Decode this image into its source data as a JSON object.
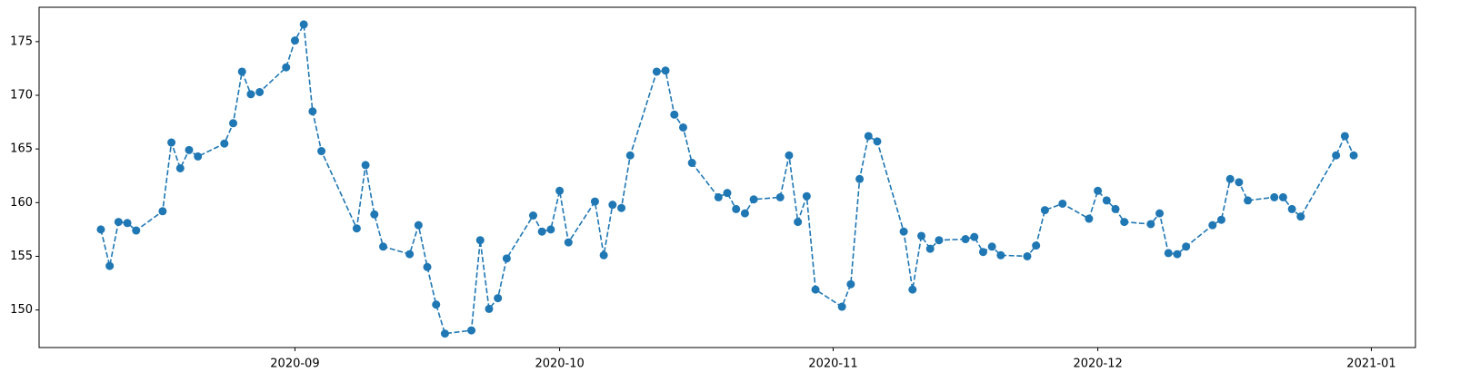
{
  "chart_data": {
    "type": "line",
    "color": "#1f77b4",
    "linestyle": "dashed",
    "marker": "circle",
    "x": [
      "2020-08-10",
      "2020-08-11",
      "2020-08-12",
      "2020-08-13",
      "2020-08-14",
      "2020-08-17",
      "2020-08-18",
      "2020-08-19",
      "2020-08-20",
      "2020-08-21",
      "2020-08-24",
      "2020-08-25",
      "2020-08-26",
      "2020-08-27",
      "2020-08-28",
      "2020-08-31",
      "2020-09-01",
      "2020-09-02",
      "2020-09-03",
      "2020-09-04",
      "2020-09-08",
      "2020-09-09",
      "2020-09-10",
      "2020-09-11",
      "2020-09-14",
      "2020-09-15",
      "2020-09-16",
      "2020-09-17",
      "2020-09-18",
      "2020-09-21",
      "2020-09-22",
      "2020-09-23",
      "2020-09-24",
      "2020-09-25",
      "2020-09-28",
      "2020-09-29",
      "2020-09-30",
      "2020-10-01",
      "2020-10-02",
      "2020-10-05",
      "2020-10-06",
      "2020-10-07",
      "2020-10-08",
      "2020-10-09",
      "2020-10-12",
      "2020-10-13",
      "2020-10-14",
      "2020-10-15",
      "2020-10-16",
      "2020-10-19",
      "2020-10-20",
      "2020-10-21",
      "2020-10-22",
      "2020-10-23",
      "2020-10-26",
      "2020-10-27",
      "2020-10-28",
      "2020-10-29",
      "2020-10-30",
      "2020-11-02",
      "2020-11-03",
      "2020-11-04",
      "2020-11-05",
      "2020-11-06",
      "2020-11-09",
      "2020-11-10",
      "2020-11-11",
      "2020-11-12",
      "2020-11-13",
      "2020-11-16",
      "2020-11-17",
      "2020-11-18",
      "2020-11-19",
      "2020-11-20",
      "2020-11-23",
      "2020-11-24",
      "2020-11-25",
      "2020-11-27",
      "2020-11-30",
      "2020-12-01",
      "2020-12-02",
      "2020-12-03",
      "2020-12-04",
      "2020-12-07",
      "2020-12-08",
      "2020-12-09",
      "2020-12-10",
      "2020-12-11",
      "2020-12-14",
      "2020-12-15",
      "2020-12-16",
      "2020-12-17",
      "2020-12-18",
      "2020-12-21",
      "2020-12-22",
      "2020-12-23",
      "2020-12-24",
      "2020-12-28",
      "2020-12-29",
      "2020-12-30"
    ],
    "values": [
      157.5,
      154.1,
      158.2,
      158.1,
      157.4,
      159.2,
      165.6,
      163.2,
      164.9,
      164.3,
      165.5,
      167.4,
      172.2,
      170.1,
      170.3,
      172.6,
      175.1,
      176.6,
      168.5,
      164.8,
      157.6,
      163.5,
      158.9,
      155.9,
      155.2,
      157.9,
      154.0,
      150.5,
      147.8,
      148.1,
      156.5,
      150.1,
      151.1,
      154.8,
      158.8,
      157.3,
      157.5,
      161.1,
      156.3,
      160.1,
      155.1,
      159.8,
      159.5,
      164.4,
      172.2,
      172.3,
      168.2,
      167.0,
      163.7,
      160.5,
      160.9,
      159.4,
      159.0,
      160.3,
      160.5,
      164.4,
      158.2,
      160.6,
      151.9,
      150.3,
      152.4,
      162.2,
      166.2,
      165.7,
      157.3,
      151.9,
      156.9,
      155.7,
      156.5,
      156.6,
      156.8,
      155.4,
      155.9,
      155.1,
      155.0,
      156.0,
      159.3,
      159.9,
      158.5,
      161.1,
      160.2,
      159.4,
      158.2,
      158.0,
      159.0,
      155.3,
      155.2,
      155.9,
      157.9,
      158.4,
      162.2,
      161.9,
      160.2,
      160.5,
      160.5,
      159.4,
      158.7,
      164.4,
      166.2,
      164.4
    ],
    "xlim": [
      "2020-08-03",
      "2021-01-06"
    ],
    "xticks": [
      {
        "value": "2020-09-01",
        "label": "2020-09"
      },
      {
        "value": "2020-10-01",
        "label": "2020-10"
      },
      {
        "value": "2020-11-01",
        "label": "2020-11"
      },
      {
        "value": "2020-12-01",
        "label": "2020-12"
      },
      {
        "value": "2021-01-01",
        "label": "2021-01"
      }
    ],
    "ylim": [
      146.5,
      178.2
    ],
    "yticks": [
      150,
      155,
      160,
      165,
      170,
      175
    ]
  }
}
